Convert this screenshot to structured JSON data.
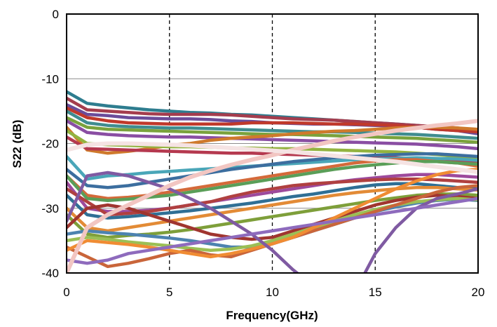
{
  "chart_data": {
    "type": "line",
    "title": "",
    "xlabel": "Frequency(GHz)",
    "ylabel": "S22 (dB)",
    "xlim": [
      0,
      20
    ],
    "ylim": [
      -40,
      0
    ],
    "x_ticks": [
      "0",
      "5",
      "10",
      "15",
      "20"
    ],
    "y_ticks": [
      "0",
      "-10",
      "-20",
      "-30",
      "-40"
    ],
    "grid": {
      "horizontal": "solid",
      "vertical": "dashed"
    },
    "legend": "none",
    "x": [
      0,
      1,
      2,
      3,
      4,
      5,
      6,
      7,
      8,
      9,
      10,
      11,
      12,
      13,
      14,
      15,
      16,
      17,
      18,
      19,
      20
    ],
    "series": [
      {
        "color": "#2e7d8f",
        "values": [
          -12,
          -13.8,
          -14.2,
          -14.5,
          -14.8,
          -15,
          -15.2,
          -15.3,
          -15.5,
          -15.6,
          -15.8,
          -16,
          -16.2,
          -16.4,
          -16.6,
          -16.8,
          -17,
          -17.2,
          -17.5,
          -17.8,
          -18
        ]
      },
      {
        "color": "#a43d4e",
        "values": [
          -13,
          -14.8,
          -15,
          -15.2,
          -15.4,
          -15.5,
          -15.5,
          -15.5,
          -15.6,
          -15.8,
          -16,
          -16.2,
          -16.3,
          -16.4,
          -16.6,
          -16.8,
          -17,
          -17.2,
          -17.4,
          -17.6,
          -18
        ]
      },
      {
        "color": "#6b4c9a",
        "values": [
          -14,
          -15.5,
          -15.7,
          -16,
          -16.1,
          -16.2,
          -16.2,
          -16.3,
          -16.5,
          -16.6,
          -16.8,
          -16.9,
          -17,
          -17,
          -17.1,
          -17.2,
          -17.3,
          -17.5,
          -17.8,
          -18,
          -18.5
        ]
      },
      {
        "color": "#c0392b",
        "values": [
          -14.5,
          -16,
          -16.5,
          -16.8,
          -16.9,
          -17,
          -17,
          -17,
          -17,
          -16.8,
          -16.8,
          -16.8,
          -16.9,
          -17,
          -17,
          -17.1,
          -17.2,
          -17.5,
          -17.8,
          -18,
          -18.2
        ]
      },
      {
        "color": "#3f8c8f",
        "values": [
          -15,
          -16.8,
          -17.2,
          -17.4,
          -17.5,
          -17.6,
          -17.6,
          -17.7,
          -17.8,
          -17.9,
          -18,
          -18.1,
          -18.2,
          -18.2,
          -18.3,
          -18.4,
          -18.5,
          -18.6,
          -18.8,
          -19,
          -19.2
        ]
      },
      {
        "color": "#7aa23c",
        "values": [
          -16,
          -17.5,
          -17.8,
          -17.9,
          -18,
          -18.1,
          -18.2,
          -18.3,
          -18.4,
          -18.5,
          -18.6,
          -18.6,
          -18.7,
          -18.8,
          -18.9,
          -19,
          -19.1,
          -19.2,
          -19.4,
          -19.6,
          -19.8
        ]
      },
      {
        "color": "#8a4ea3",
        "values": [
          -16.5,
          -18.3,
          -18.6,
          -18.8,
          -18.9,
          -19,
          -19,
          -19.1,
          -19.2,
          -19.3,
          -19.4,
          -19.5,
          -19.6,
          -19.7,
          -19.8,
          -19.9,
          -20,
          -20.1,
          -20.3,
          -20.5,
          -20.8
        ]
      },
      {
        "color": "#cf7a2c",
        "values": [
          -17.5,
          -21,
          -21.5,
          -21.2,
          -20.8,
          -20.3,
          -20,
          -19.5,
          -19.2,
          -19,
          -18.8,
          -18.5,
          -18.3,
          -18.1,
          -18,
          -17.8,
          -17.6,
          -17.5,
          -17.5,
          -17.6,
          -17.8
        ]
      },
      {
        "color": "#93b340",
        "values": [
          -18,
          -20,
          -20.2,
          -20.3,
          -20.4,
          -20.5,
          -20.5,
          -20.6,
          -20.7,
          -20.7,
          -20.8,
          -20.8,
          -20.9,
          -21,
          -21.1,
          -21.2,
          -21.3,
          -21.5,
          -21.7,
          -22,
          -22.2
        ]
      },
      {
        "color": "#b5394f",
        "values": [
          -19,
          -20.8,
          -20.9,
          -21,
          -21.1,
          -21.2,
          -21.3,
          -21.4,
          -21.5,
          -21.5,
          -21.6,
          -21.7,
          -21.8,
          -21.9,
          -22,
          -22.1,
          -22.2,
          -22.4,
          -22.6,
          -22.8,
          -23
        ]
      },
      {
        "color": "#4aa6b8",
        "values": [
          -22,
          -25.5,
          -25,
          -24.8,
          -24.5,
          -24.3,
          -24.1,
          -23.9,
          -23.7,
          -23.5,
          -23.3,
          -23.1,
          -22.9,
          -22.7,
          -22.5,
          -22.4,
          -22.3,
          -22.2,
          -22.3,
          -22.4,
          -22.6
        ]
      },
      {
        "color": "#3c6e9f",
        "values": [
          -24,
          -26.5,
          -26.8,
          -26.5,
          -26,
          -25.5,
          -25,
          -24.5,
          -24,
          -23.6,
          -23.2,
          -22.8,
          -22.5,
          -22.2,
          -22,
          -21.8,
          -21.7,
          -21.6,
          -21.6,
          -21.8,
          -22
        ]
      },
      {
        "color": "#d46a3a",
        "values": [
          -25,
          -28,
          -28.5,
          -28.3,
          -28,
          -27.5,
          -27,
          -26.5,
          -26,
          -25.5,
          -25,
          -24.5,
          -24,
          -23.5,
          -23,
          -22.7,
          -22.5,
          -22.5,
          -22.8,
          -23,
          -23.5
        ]
      },
      {
        "color": "#5a9e58",
        "values": [
          -25,
          -28.5,
          -28.8,
          -28.6,
          -28.3,
          -28,
          -27.5,
          -27,
          -26.5,
          -26,
          -25.5,
          -25,
          -24.5,
          -24,
          -23.6,
          -23.3,
          -23,
          -22.8,
          -22.8,
          -23,
          -23.2
        ]
      },
      {
        "color": "#9d4a9c",
        "values": [
          -26,
          -30,
          -30.5,
          -30.5,
          -30.3,
          -30,
          -29.5,
          -29,
          -28.5,
          -28,
          -27.5,
          -27,
          -26.5,
          -26,
          -25.6,
          -25.3,
          -25,
          -24.8,
          -24.8,
          -25,
          -25.2
        ]
      },
      {
        "color": "#b04040",
        "values": [
          -27,
          -29,
          -31,
          -30.8,
          -30.5,
          -30,
          -29.5,
          -29,
          -28.2,
          -27.5,
          -27,
          -26.5,
          -26.2,
          -26,
          -25.8,
          -25.6,
          -25.5,
          -25.5,
          -25.6,
          -25.8,
          -26
        ]
      },
      {
        "color": "#2f6f95",
        "values": [
          -28,
          -31,
          -31.5,
          -31.3,
          -31,
          -30.7,
          -30.4,
          -30,
          -29.6,
          -29.2,
          -28.7,
          -28.2,
          -27.8,
          -27.3,
          -26.8,
          -26.4,
          -26.2,
          -26.2,
          -26.5,
          -26.8,
          -27
        ]
      },
      {
        "color": "#e38b36",
        "values": [
          -30,
          -33,
          -33.5,
          -33,
          -32.5,
          -32,
          -31.5,
          -31,
          -30.5,
          -30,
          -29.5,
          -29,
          -28.5,
          -28,
          -27.6,
          -27.3,
          -27,
          -26.8,
          -26.8,
          -27,
          -27.2
        ]
      },
      {
        "color": "#7e9f3a",
        "values": [
          -31,
          -34,
          -34.5,
          -34.2,
          -34,
          -33.7,
          -33.3,
          -32.8,
          -32.3,
          -31.8,
          -31.3,
          -30.8,
          -30.3,
          -29.8,
          -29.3,
          -28.8,
          -28.4,
          -28,
          -27.8,
          -27.8,
          -28
        ]
      },
      {
        "color": "#a0352f",
        "values": [
          -33,
          -30,
          -29.5,
          -30,
          -31,
          -32,
          -33,
          -34,
          -34.5,
          -34.8,
          -34.5,
          -33.5,
          -32.5,
          -31.5,
          -30.5,
          -29.5,
          -28.8,
          -28.3,
          -28,
          -28.2,
          -28.5
        ]
      },
      {
        "color": "#4d83b0",
        "values": [
          -34,
          -33.5,
          -33.8,
          -34,
          -34.3,
          -34.6,
          -35,
          -35.5,
          -36,
          -36,
          -35.5,
          -34.5,
          -33.5,
          -32.5,
          -31.5,
          -30.5,
          -29.8,
          -29.2,
          -28.8,
          -28.6,
          -28.8
        ]
      },
      {
        "color": "#9bbf55",
        "values": [
          -35,
          -34.5,
          -34.8,
          -35.2,
          -35.5,
          -35.8,
          -36.2,
          -36.5,
          -36.3,
          -35.8,
          -35,
          -34,
          -33,
          -32,
          -31,
          -30.2,
          -29.5,
          -29,
          -28.7,
          -28.5,
          -28.7
        ]
      },
      {
        "color": "#c9653a",
        "values": [
          -36,
          -37.5,
          -39,
          -38.5,
          -37.8,
          -37,
          -36.5,
          -37.2,
          -37.5,
          -36.5,
          -35.5,
          -34.5,
          -33.5,
          -32.5,
          -31.5,
          -30.5,
          -29.5,
          -28.5,
          -27.5,
          -26.8,
          -26.5
        ]
      },
      {
        "color": "#f08c33",
        "values": [
          -36.5,
          -35,
          -35.3,
          -35.6,
          -36,
          -36.5,
          -37,
          -37.5,
          -37,
          -36.3,
          -35.5,
          -34.5,
          -33,
          -31.5,
          -30,
          -28.5,
          -27,
          -25.8,
          -24.8,
          -24.2,
          -24
        ]
      },
      {
        "color": "#7f5aa2",
        "values": [
          -32,
          -25,
          -24.5,
          -25,
          -26,
          -27,
          -28.5,
          -30,
          -32,
          -34,
          -36.5,
          -39.5,
          -42,
          -44,
          -43,
          -37,
          -33,
          -30,
          -28.5,
          -27.8,
          -27
        ]
      },
      {
        "color": "#8e6bbd",
        "values": [
          -38,
          -38.5,
          -38,
          -37,
          -36.5,
          -36,
          -35.5,
          -35,
          -34.5,
          -34,
          -33.5,
          -33,
          -32.5,
          -32,
          -31.5,
          -31,
          -30.5,
          -30,
          -29.5,
          -29,
          -28.5
        ]
      },
      {
        "color": "#f2c6c2",
        "values": [
          -40,
          -33,
          -31,
          -29.5,
          -28,
          -26.5,
          -25.2,
          -24.2,
          -23.3,
          -22.5,
          -21.8,
          -21,
          -20.3,
          -19.6,
          -19,
          -18.5,
          -18,
          -17.6,
          -17.2,
          -16.9,
          -16.5
        ]
      },
      {
        "color": "#f5e3e3",
        "values": [
          -21,
          -20.2,
          -20,
          -20,
          -20.1,
          -20.2,
          -20.3,
          -20.5,
          -20.7,
          -20.9,
          -21.1,
          -21.3,
          -21.6,
          -21.9,
          -22.2,
          -22.5,
          -22.8,
          -23.2,
          -23.6,
          -24,
          -24.4
        ]
      }
    ]
  }
}
